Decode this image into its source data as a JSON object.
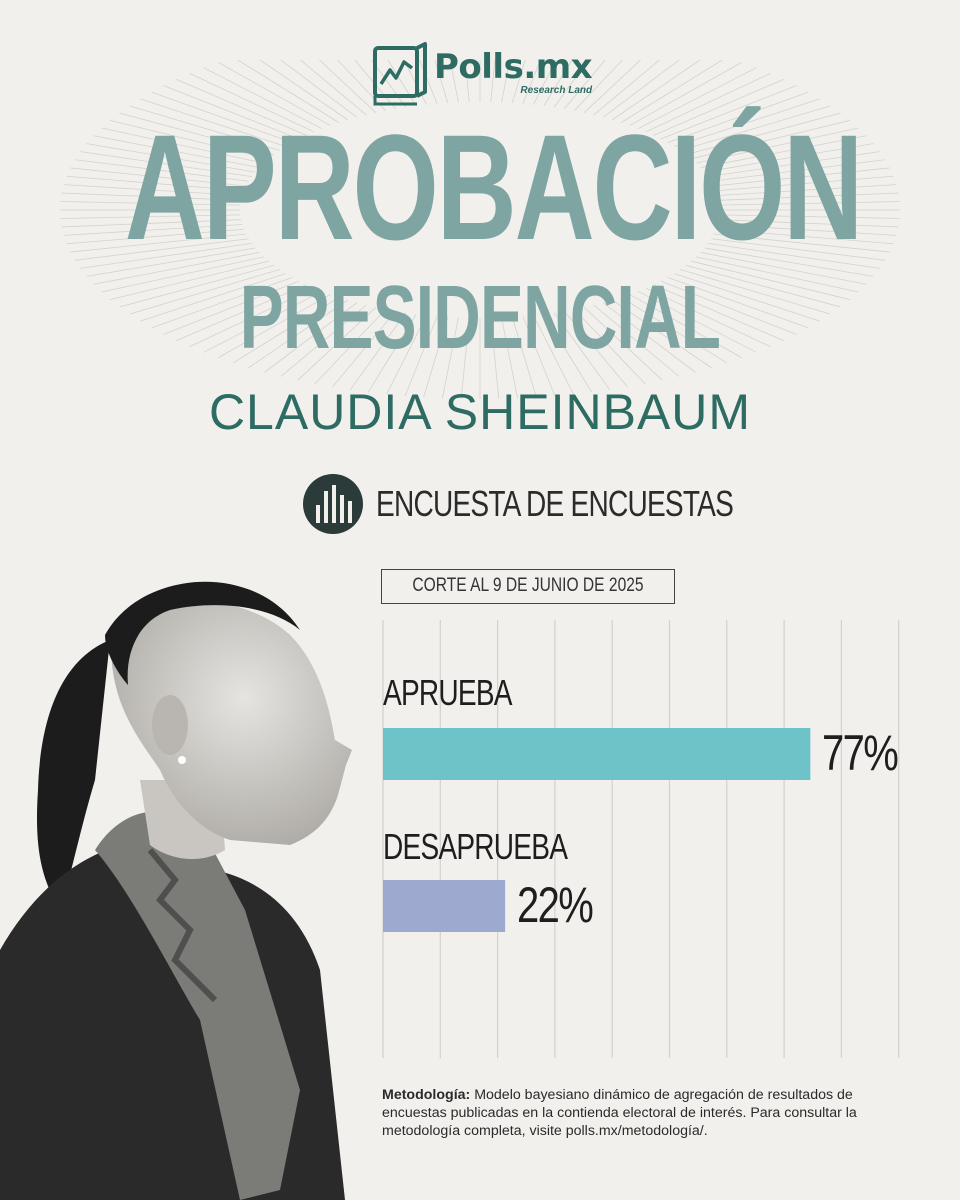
{
  "brand": {
    "name": "Polls.mx",
    "sub": "Research Land"
  },
  "header": {
    "title": "APROBACIÓN",
    "subtitle": "PRESIDENCIAL",
    "person": "CLAUDIA SHEINBAUM"
  },
  "encuesta": {
    "label": "ENCUESTA DE ENCUESTAS",
    "icon": "bar-chart-circle-icon"
  },
  "cutoff": "CORTE AL 9 DE JUNIO DE 2025",
  "chart_data": {
    "type": "bar",
    "orientation": "horizontal",
    "categories": [
      "APRUEBA",
      "DESAPRUEBA"
    ],
    "values": [
      77,
      22
    ],
    "value_labels": [
      "77%",
      "22%"
    ],
    "colors": [
      "#6ec3c8",
      "#9ea9cf"
    ],
    "xlim": [
      0,
      100
    ],
    "grid": true
  },
  "methodology": {
    "label": "Metodología:",
    "text": " Modelo bayesiano dinámico de agregación de resultados de encuestas publicadas en la contienda electoral de interés. Para consultar la metodología completa, visite polls.mx/metodología/."
  },
  "colors": {
    "background": "#f1f0ed",
    "title": "#7ea5a2",
    "accent": "#2d6b63"
  }
}
